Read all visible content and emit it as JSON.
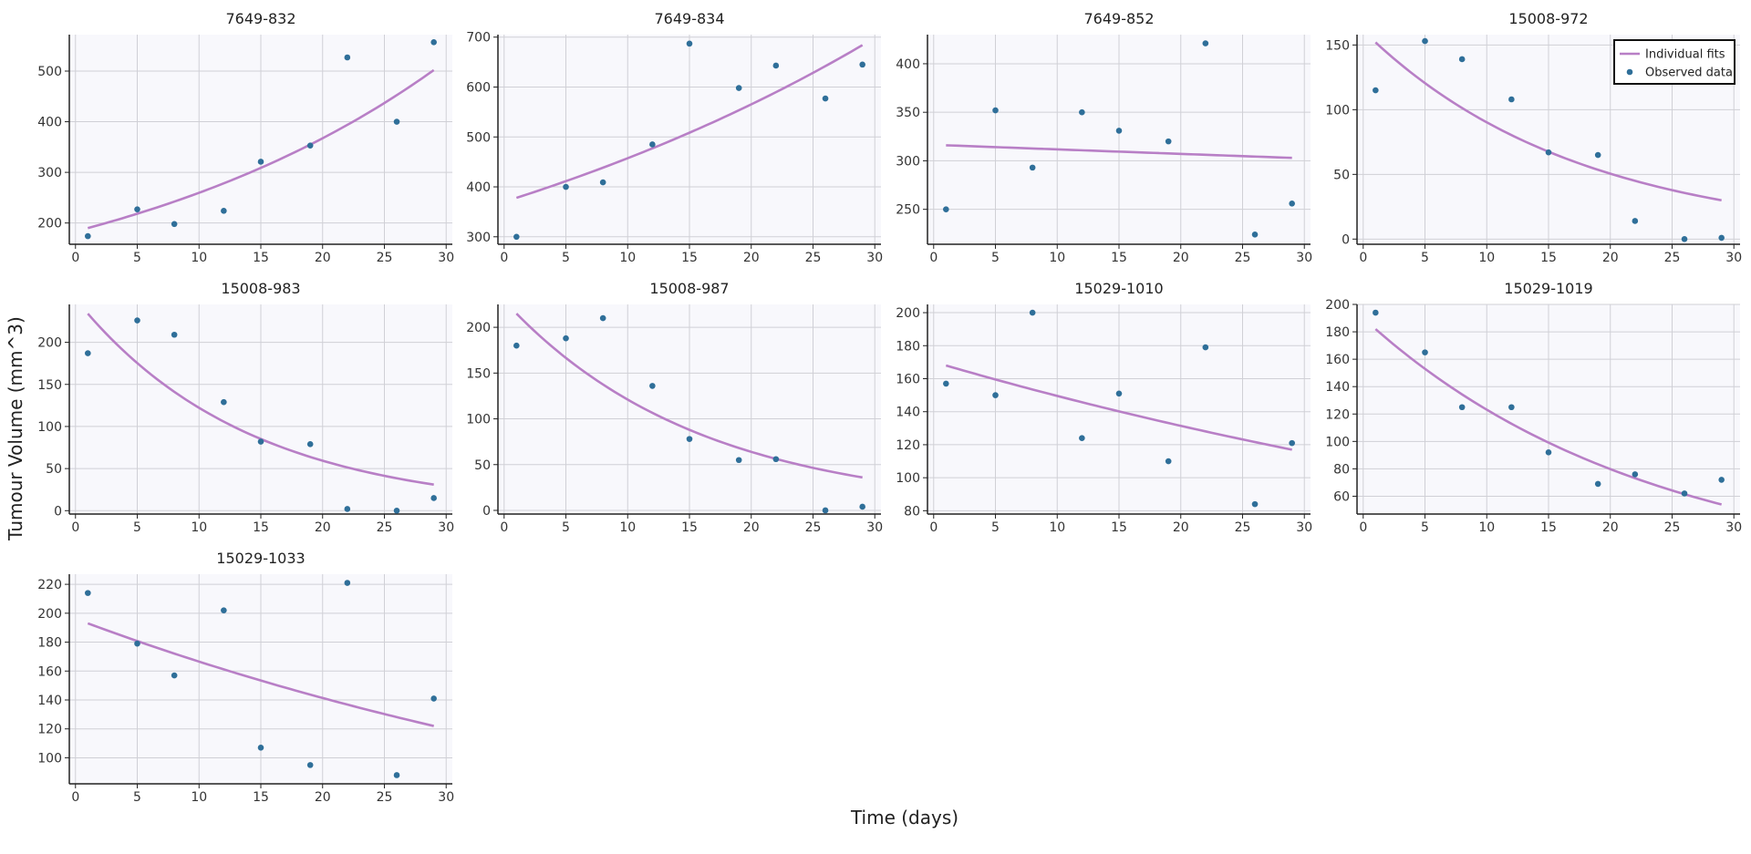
{
  "figure": {
    "xlabel": "Time (days)",
    "ylabel": "Tumour Volume (mm^3)",
    "legend": {
      "placement": "top-right",
      "entries": [
        {
          "label": "Individual fits",
          "kind": "line"
        },
        {
          "label": "Observed data",
          "kind": "marker"
        }
      ]
    },
    "colors": {
      "fit_line": "#b87fc6",
      "observed_marker": "#2f6f99",
      "plot_background": "#f8f8fc",
      "grid": "#d0d0d6",
      "axis": "#222222"
    },
    "grid": true
  },
  "chart_data": [
    {
      "type": "scatter",
      "title": "7649-832",
      "xlim": [
        -0.5,
        30.5
      ],
      "xticks": [
        0,
        5,
        10,
        15,
        20,
        25,
        30
      ],
      "ylim": [
        158,
        572
      ],
      "yticks": [
        200,
        300,
        400,
        500
      ],
      "observed": {
        "name": "Observed data",
        "x": [
          1,
          5,
          8,
          12,
          15,
          19,
          22,
          26,
          29
        ],
        "y": [
          174,
          227,
          198,
          224,
          321,
          353,
          527,
          400,
          557
        ]
      },
      "fit": {
        "name": "Individual fits",
        "x": [
          1,
          29
        ],
        "y": [
          190,
          502
        ],
        "model": "exponential"
      }
    },
    {
      "type": "scatter",
      "title": "7649-834",
      "xlim": [
        -0.5,
        30.5
      ],
      "xticks": [
        0,
        5,
        10,
        15,
        20,
        25,
        30
      ],
      "ylim": [
        285,
        705
      ],
      "yticks": [
        300,
        400,
        500,
        600,
        700
      ],
      "observed": {
        "name": "Observed data",
        "x": [
          1,
          5,
          8,
          12,
          15,
          19,
          22,
          26,
          29
        ],
        "y": [
          300,
          400,
          409,
          485,
          687,
          598,
          643,
          577,
          645
        ]
      },
      "fit": {
        "name": "Individual fits",
        "x": [
          1,
          29
        ],
        "y": [
          378,
          684
        ],
        "model": "exponential"
      }
    },
    {
      "type": "scatter",
      "title": "7649-852",
      "xlim": [
        -0.5,
        30.5
      ],
      "xticks": [
        0,
        5,
        10,
        15,
        20,
        25,
        30
      ],
      "ylim": [
        214,
        430
      ],
      "yticks": [
        250,
        300,
        350,
        400
      ],
      "observed": {
        "name": "Observed data",
        "x": [
          1,
          5,
          8,
          12,
          15,
          19,
          22,
          26,
          29
        ],
        "y": [
          250,
          352,
          293,
          350,
          331,
          320,
          421,
          224,
          256
        ]
      },
      "fit": {
        "name": "Individual fits",
        "x": [
          1,
          29
        ],
        "y": [
          316,
          303
        ],
        "model": "exponential"
      }
    },
    {
      "type": "scatter",
      "title": "15008-972",
      "xlim": [
        -0.5,
        30.5
      ],
      "xticks": [
        0,
        5,
        10,
        15,
        20,
        25,
        30
      ],
      "ylim": [
        -4,
        158
      ],
      "yticks": [
        0,
        50,
        100,
        150
      ],
      "observed": {
        "name": "Observed data",
        "x": [
          1,
          5,
          8,
          12,
          15,
          19,
          22,
          26,
          29
        ],
        "y": [
          115,
          153,
          139,
          108,
          67,
          65,
          14,
          0,
          1
        ]
      },
      "fit": {
        "name": "Individual fits",
        "x": [
          1,
          29
        ],
        "y": [
          152,
          30
        ],
        "model": "exponential"
      }
    },
    {
      "type": "scatter",
      "title": "15008-983",
      "xlim": [
        -0.5,
        30.5
      ],
      "xticks": [
        0,
        5,
        10,
        15,
        20,
        25,
        30
      ],
      "ylim": [
        -4,
        245
      ],
      "yticks": [
        0,
        50,
        100,
        150,
        200
      ],
      "observed": {
        "name": "Observed data",
        "x": [
          1,
          5,
          8,
          12,
          15,
          19,
          22,
          26,
          29
        ],
        "y": [
          187,
          226,
          209,
          129,
          82,
          79,
          2,
          0,
          15
        ]
      },
      "fit": {
        "name": "Individual fits",
        "x": [
          1,
          29
        ],
        "y": [
          234,
          31
        ],
        "model": "exponential"
      }
    },
    {
      "type": "scatter",
      "title": "15008-987",
      "xlim": [
        -0.5,
        30.5
      ],
      "xticks": [
        0,
        5,
        10,
        15,
        20,
        25,
        30
      ],
      "ylim": [
        -4,
        225
      ],
      "yticks": [
        0,
        50,
        100,
        150,
        200
      ],
      "observed": {
        "name": "Observed data",
        "x": [
          1,
          5,
          8,
          12,
          15,
          19,
          22,
          26,
          29
        ],
        "y": [
          180,
          188,
          210,
          136,
          78,
          55,
          56,
          0,
          4
        ]
      },
      "fit": {
        "name": "Individual fits",
        "x": [
          1,
          29
        ],
        "y": [
          215,
          36
        ],
        "model": "exponential"
      }
    },
    {
      "type": "scatter",
      "title": "15029-1010",
      "xlim": [
        -0.5,
        30.5
      ],
      "xticks": [
        0,
        5,
        10,
        15,
        20,
        25,
        30
      ],
      "ylim": [
        78,
        205
      ],
      "yticks": [
        80,
        100,
        120,
        140,
        160,
        180,
        200
      ],
      "observed": {
        "name": "Observed data",
        "x": [
          1,
          5,
          8,
          12,
          15,
          19,
          22,
          26,
          29
        ],
        "y": [
          157,
          150,
          200,
          124,
          151,
          110,
          179,
          84,
          121
        ]
      },
      "fit": {
        "name": "Individual fits",
        "x": [
          1,
          29
        ],
        "y": [
          168,
          117
        ],
        "model": "exponential"
      }
    },
    {
      "type": "scatter",
      "title": "15029-1019",
      "xlim": [
        -0.5,
        30.5
      ],
      "xticks": [
        0,
        5,
        10,
        15,
        20,
        25,
        30
      ],
      "ylim": [
        47,
        200
      ],
      "yticks": [
        60,
        80,
        100,
        120,
        140,
        160,
        180,
        200
      ],
      "observed": {
        "name": "Observed data",
        "x": [
          1,
          5,
          8,
          12,
          15,
          19,
          22,
          26,
          29
        ],
        "y": [
          194,
          165,
          125,
          125,
          92,
          69,
          76,
          62,
          72
        ]
      },
      "fit": {
        "name": "Individual fits",
        "x": [
          1,
          29
        ],
        "y": [
          182,
          54
        ],
        "model": "exponential"
      }
    },
    {
      "type": "scatter",
      "title": "15029-1033",
      "xlim": [
        -0.5,
        30.5
      ],
      "xticks": [
        0,
        5,
        10,
        15,
        20,
        25,
        30
      ],
      "ylim": [
        82,
        227
      ],
      "yticks": [
        100,
        120,
        140,
        160,
        180,
        200,
        220
      ],
      "observed": {
        "name": "Observed data",
        "x": [
          1,
          5,
          8,
          12,
          15,
          19,
          22,
          26,
          29
        ],
        "y": [
          214,
          179,
          157,
          202,
          107,
          95,
          221,
          88,
          141
        ]
      },
      "fit": {
        "name": "Individual fits",
        "x": [
          1,
          29
        ],
        "y": [
          193,
          122
        ],
        "model": "exponential"
      }
    }
  ]
}
